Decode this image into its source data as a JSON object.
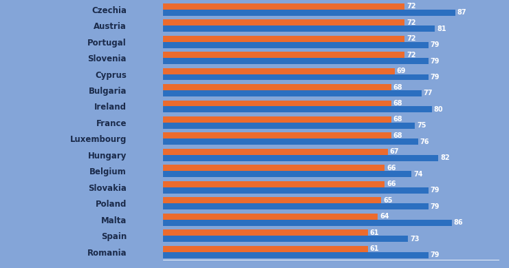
{
  "chart_data": {
    "type": "bar",
    "orientation": "horizontal",
    "data_labels": true,
    "tick_labels": "y",
    "grid": false,
    "categories": [
      "Czechia",
      "Austria",
      "Portugal",
      "Slovenia",
      "Cyprus",
      "Bulgaria",
      "Ireland",
      "France",
      "Luxembourg",
      "Hungary",
      "Belgium",
      "Slovakia",
      "Poland",
      "Malta",
      "Spain",
      "Romania"
    ],
    "series": [
      {
        "color": "#ec6b2d",
        "values": [
          72,
          72,
          72,
          72,
          69,
          68,
          68,
          68,
          68,
          67,
          66,
          66,
          65,
          64,
          61,
          61
        ]
      },
      {
        "color": "#2b6fc0",
        "values": [
          87,
          81,
          79,
          79,
          79,
          77,
          80,
          75,
          76,
          82,
          74,
          79,
          79,
          86,
          73,
          79
        ]
      }
    ],
    "xlim": [
      0,
      100
    ],
    "xticks": []
  }
}
